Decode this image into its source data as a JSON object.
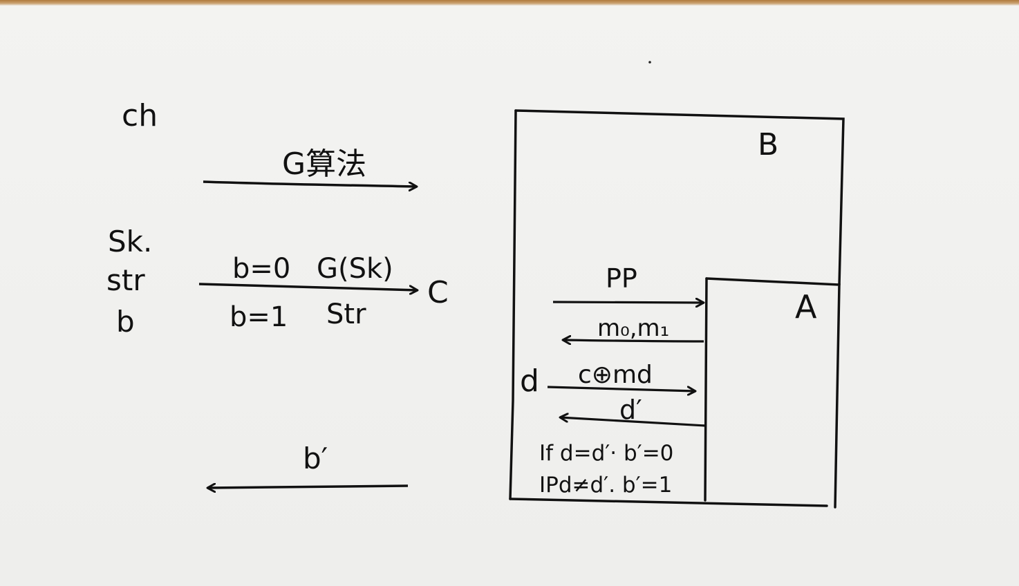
{
  "challenger": {
    "label": "ch",
    "params": [
      "Sk.",
      "str",
      "b"
    ]
  },
  "arrows_left": {
    "g_algo": "G算法",
    "b0": "b=0",
    "gsk": "G(Sk)",
    "b1": "b=1",
    "str": "Str",
    "c": "C",
    "bprime": "b′"
  },
  "box_b": {
    "label": "B",
    "pp": "PP",
    "m": "m₀,m₁",
    "cm": "c⊕md",
    "d": "d",
    "dprime": "d′",
    "rule1": "If d=d′· b′=0",
    "rule2": "IPd≠d′. b′=1"
  },
  "box_a": {
    "label": "A"
  }
}
